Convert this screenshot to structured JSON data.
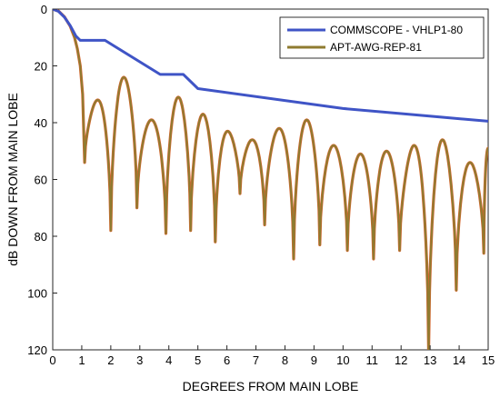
{
  "chart_data": {
    "type": "line",
    "xlabel": "DEGREES FROM MAIN LOBE",
    "ylabel": "dB DOWN FROM MAIN LOBE",
    "xlim": [
      0,
      15
    ],
    "ylim": [
      0,
      120
    ],
    "y_inverted": true,
    "grid": false,
    "legend_position": "top-right",
    "x_ticks": [
      "0",
      "1",
      "2",
      "3",
      "4",
      "5",
      "6",
      "7",
      "8",
      "9",
      "10",
      "11",
      "12",
      "13",
      "14",
      "15"
    ],
    "y_ticks": [
      "0",
      "20",
      "40",
      "60",
      "80",
      "100",
      "120"
    ],
    "series": [
      {
        "name": "COMMSCOPE - VHLP1-80",
        "color": "#3f54c6",
        "style": "envelope",
        "points": [
          [
            0,
            0
          ],
          [
            0.2,
            0.8
          ],
          [
            0.4,
            2.8
          ],
          [
            0.6,
            5.8
          ],
          [
            0.8,
            9.5
          ],
          [
            0.95,
            11
          ],
          [
            1.8,
            11
          ],
          [
            3.7,
            23
          ],
          [
            4.5,
            23
          ],
          [
            5.0,
            28
          ],
          [
            10,
            35
          ],
          [
            15,
            39.5
          ]
        ]
      },
      {
        "name": "APT-AWG-REP-81",
        "color": "#8f7b30",
        "style": "sidelobes",
        "lobe_curve": [
          [
            0,
            0
          ],
          [
            0.2,
            0.7
          ],
          [
            0.4,
            2.7
          ],
          [
            0.6,
            6
          ],
          [
            0.75,
            10
          ],
          [
            0.85,
            14
          ],
          [
            0.95,
            20
          ],
          [
            1.03,
            30
          ],
          [
            1.1,
            54
          ]
        ],
        "nulls": [
          [
            1.1,
            54
          ],
          [
            2.0,
            78
          ],
          [
            2.9,
            70
          ],
          [
            3.9,
            79
          ],
          [
            4.75,
            78
          ],
          [
            5.6,
            82
          ],
          [
            6.45,
            65
          ],
          [
            7.3,
            76
          ],
          [
            8.3,
            88
          ],
          [
            9.2,
            83
          ],
          [
            10.15,
            85
          ],
          [
            11.05,
            88
          ],
          [
            11.95,
            85
          ],
          [
            12.95,
            121
          ],
          [
            13.9,
            99
          ],
          [
            14.85,
            86
          ]
        ],
        "peaks": [
          [
            1.5,
            32
          ],
          [
            2.45,
            24
          ],
          [
            3.35,
            39
          ],
          [
            4.25,
            31
          ],
          [
            5.15,
            37
          ],
          [
            6.0,
            43
          ],
          [
            6.9,
            46
          ],
          [
            7.8,
            42
          ],
          [
            8.75,
            39
          ],
          [
            9.65,
            48
          ],
          [
            10.6,
            51
          ],
          [
            11.5,
            50
          ],
          [
            12.45,
            48
          ],
          [
            13.35,
            46
          ],
          [
            14.35,
            54
          ],
          [
            15,
            49
          ]
        ]
      }
    ]
  }
}
